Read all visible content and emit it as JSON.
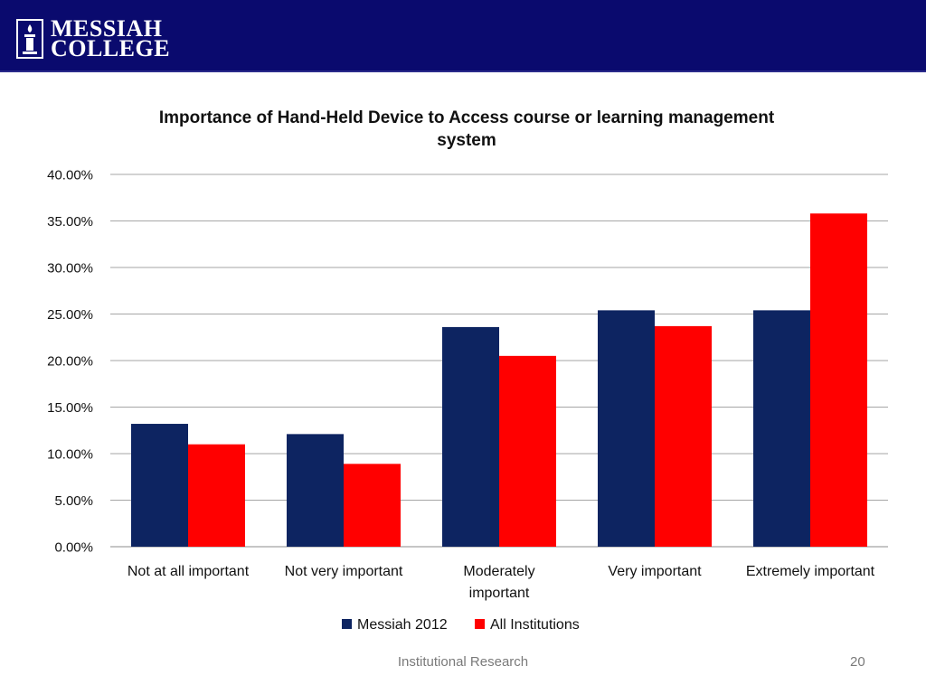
{
  "header": {
    "logo_line1": "MESSIAH",
    "logo_line2": "COLLEGE",
    "band_color": "#0a0a6e"
  },
  "footer": {
    "text": "Institutional Research",
    "page_number": "20"
  },
  "chart_data": {
    "type": "bar",
    "title_lines": [
      "Importance of Hand-Held Device to Access course or learning management",
      "system"
    ],
    "categories": [
      [
        "Not at all important"
      ],
      [
        "Not very important"
      ],
      [
        "Moderately",
        "important"
      ],
      [
        "Very important"
      ],
      [
        "Extremely important"
      ]
    ],
    "series": [
      {
        "name": "Messiah 2012",
        "color": "#0d2461",
        "values": [
          13.2,
          12.1,
          23.6,
          25.4,
          25.4
        ]
      },
      {
        "name": "All Institutions",
        "color": "#ff0000",
        "values": [
          11.0,
          8.9,
          20.5,
          23.7,
          35.8
        ]
      }
    ],
    "ylim": [
      0,
      40
    ],
    "yticks": [
      "0.00%",
      "5.00%",
      "10.00%",
      "15.00%",
      "20.00%",
      "25.00%",
      "30.00%",
      "35.00%",
      "40.00%"
    ],
    "ytick_values": [
      0,
      5,
      10,
      15,
      20,
      25,
      30,
      35,
      40
    ],
    "grid": true,
    "legend_position": "bottom"
  }
}
